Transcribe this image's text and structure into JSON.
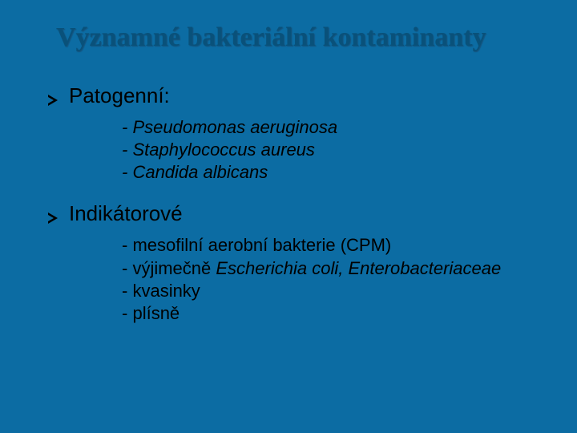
{
  "slide": {
    "background_color": "#0c6ca3",
    "title": {
      "text": "Významné bakteriální kontaminanty",
      "color": "#09517a",
      "font_family": "Times New Roman",
      "font_size_pt": 26,
      "font_weight": "bold"
    },
    "bullet_marker": {
      "shape": "chevron-right",
      "color": "#000000"
    },
    "body_text_color": "#000000",
    "sections": [
      {
        "label": "Patogenní:",
        "label_fontsize_pt": 20,
        "items": [
          {
            "prefix": "- ",
            "text": "Pseudomonas aeruginosa",
            "italic": true
          },
          {
            "prefix": "- ",
            "text": "Staphylococcus aureus",
            "italic": true
          },
          {
            "prefix": "- ",
            "text": "Candida albicans",
            "italic": true
          }
        ]
      },
      {
        "label": "Indikátorové",
        "label_fontsize_pt": 20,
        "items": [
          {
            "prefix": "- ",
            "text": "mesofilní aerobní bakterie (CPM)",
            "italic": false
          },
          {
            "prefix": "- ",
            "text": "výjimečně ",
            "italic": false,
            "tail_text": "Escherichia coli, Enterobacteriaceae",
            "tail_italic": true
          },
          {
            "prefix": "- ",
            "text": "kvasinky",
            "italic": false
          },
          {
            "prefix": "- ",
            "text": "plísně",
            "italic": false
          }
        ]
      }
    ]
  }
}
